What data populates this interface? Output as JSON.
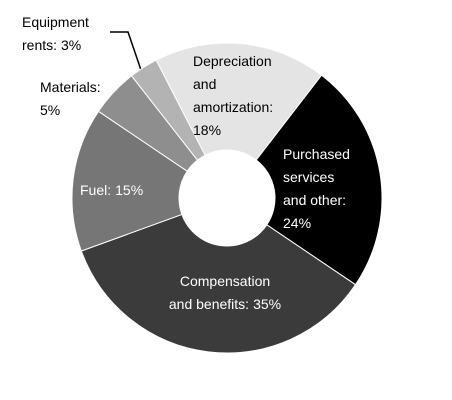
{
  "chart_data": {
    "type": "donut",
    "categories": [
      [
        "Depreciation",
        "and",
        "amortization:"
      ],
      [
        "Purchased",
        "services",
        "and other:"
      ],
      [
        "Compensation",
        "and benefits:"
      ],
      [
        "Fuel:"
      ],
      [
        "Materials:"
      ],
      [
        "Equipment",
        "rents:"
      ]
    ],
    "values": [
      18,
      24,
      35,
      15,
      5,
      3
    ],
    "value_labels": [
      "18%",
      "24%",
      "35%",
      "15%",
      "5%",
      "3%"
    ],
    "colors": [
      "#e4e4e4",
      "#000000",
      "#3b3b3b",
      "#767676",
      "#8e8e8e",
      "#b3b3b3"
    ]
  }
}
